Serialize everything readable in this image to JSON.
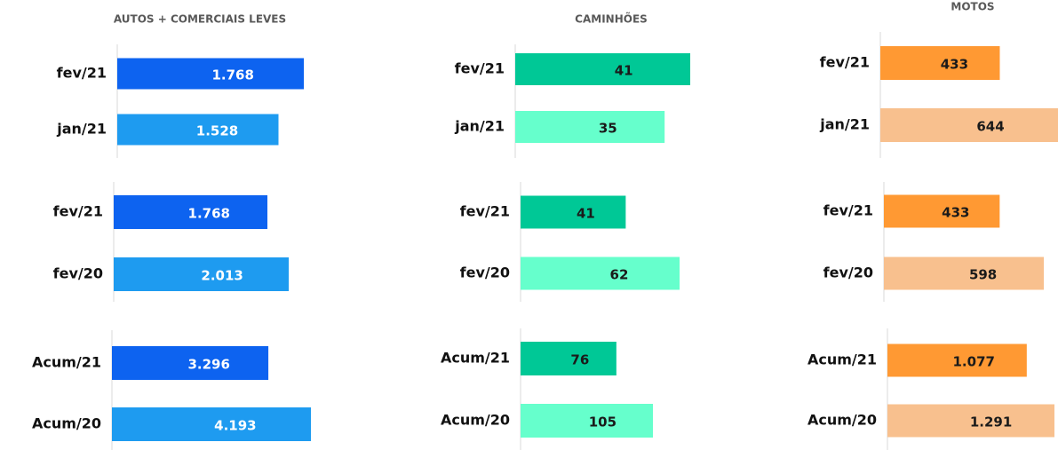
{
  "chart_data": [
    {
      "type": "bar",
      "orientation": "horizontal",
      "title": "AUTOS + COMERCIAIS LEVES",
      "categories": [
        "fev/21",
        "jan/21"
      ],
      "values": [
        1768,
        1528
      ],
      "value_labels": [
        "1.768",
        "1.528"
      ],
      "colors": [
        "#0d63f0",
        "#1e9bf0"
      ],
      "label_color": "#ffffff"
    },
    {
      "type": "bar",
      "orientation": "horizontal",
      "categories": [
        "fev/21",
        "fev/20"
      ],
      "values": [
        1768,
        2013
      ],
      "value_labels": [
        "1.768",
        "2.013"
      ],
      "colors": [
        "#0d63f0",
        "#1e9bf0"
      ],
      "label_color": "#ffffff"
    },
    {
      "type": "bar",
      "orientation": "horizontal",
      "categories": [
        "Acum/21",
        "Acum/20"
      ],
      "values": [
        3296,
        4193
      ],
      "value_labels": [
        "3.296",
        "4.193"
      ],
      "colors": [
        "#0d63f0",
        "#1e9bf0"
      ],
      "label_color": "#ffffff"
    },
    {
      "type": "bar",
      "orientation": "horizontal",
      "title": "CAMINHÕES",
      "categories": [
        "fev/21",
        "jan/21"
      ],
      "values": [
        41,
        35
      ],
      "colors": [
        "#00c896",
        "#66ffcc"
      ],
      "label_color": "#1a1a1a"
    },
    {
      "type": "bar",
      "orientation": "horizontal",
      "categories": [
        "fev/21",
        "fev/20"
      ],
      "values": [
        41,
        62
      ],
      "colors": [
        "#00c896",
        "#66ffcc"
      ],
      "label_color": "#1a1a1a"
    },
    {
      "type": "bar",
      "orientation": "horizontal",
      "categories": [
        "Acum/21",
        "Acum/20"
      ],
      "values": [
        76,
        105
      ],
      "colors": [
        "#00c896",
        "#66ffcc"
      ],
      "label_color": "#1a1a1a"
    },
    {
      "type": "bar",
      "orientation": "horizontal",
      "title": "MOTOS",
      "categories": [
        "fev/21",
        "jan/21"
      ],
      "values": [
        433,
        644
      ],
      "colors": [
        "#ff9933",
        "#f8c08e"
      ],
      "label_color": "#1a1a1a"
    },
    {
      "type": "bar",
      "orientation": "horizontal",
      "categories": [
        "fev/21",
        "fev/20"
      ],
      "values": [
        433,
        598
      ],
      "colors": [
        "#ff9933",
        "#f8c08e"
      ],
      "label_color": "#1a1a1a"
    },
    {
      "type": "bar",
      "orientation": "horizontal",
      "categories": [
        "Acum/21",
        "Acum/20"
      ],
      "values": [
        1077,
        1291
      ],
      "value_labels": [
        "1.077",
        "1.291"
      ],
      "colors": [
        "#ff9933",
        "#f8c08e"
      ],
      "label_color": "#1a1a1a"
    }
  ]
}
